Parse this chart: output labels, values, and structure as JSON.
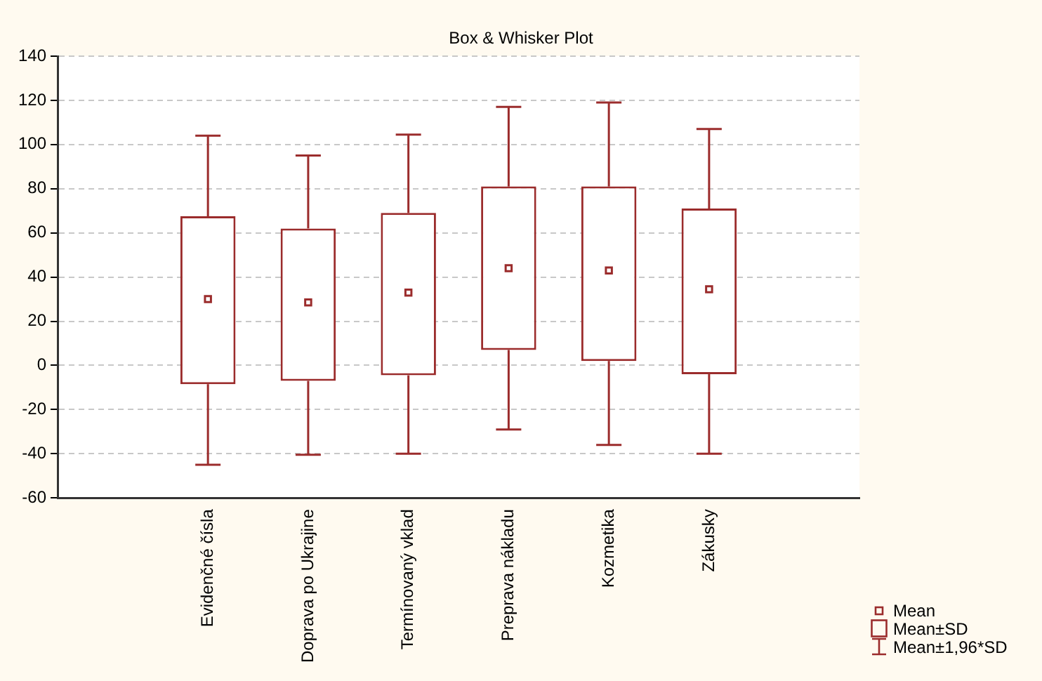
{
  "chart_data": {
    "type": "box",
    "title": "Box & Whisker Plot",
    "categories": [
      null,
      "Evidenčné čísla",
      "Doprava po Ukrajine",
      "Termínovaný vklad",
      "Preprava nákladu",
      "Kozmetika",
      "Zákusky",
      null
    ],
    "boxes": [
      null,
      {
        "low": -45,
        "q1": -8.5,
        "q3": 67.5,
        "high": 104,
        "mean": 30
      },
      {
        "low": -40.5,
        "q1": -7,
        "q3": 62,
        "high": 95,
        "mean": 28.5
      },
      {
        "low": -40,
        "q1": -4.5,
        "q3": 69,
        "high": 104.5,
        "mean": 33
      },
      {
        "low": -29,
        "q1": 7,
        "q3": 81,
        "high": 117,
        "mean": 44
      },
      {
        "low": -36,
        "q1": 2,
        "q3": 81,
        "high": 119,
        "mean": 43
      },
      {
        "low": -40,
        "q1": -4,
        "q3": 71,
        "high": 107,
        "mean": 34.5
      },
      null
    ],
    "color": "#9b2c2c",
    "ylim": [
      -60,
      140
    ],
    "yticks": [
      -60,
      -40,
      -20,
      0,
      20,
      40,
      60,
      80,
      100,
      120,
      140
    ],
    "grid": "y",
    "marker": "square",
    "annotations": [
      "Mean",
      "Mean±SD",
      "Mean±1,96*SD"
    ]
  }
}
